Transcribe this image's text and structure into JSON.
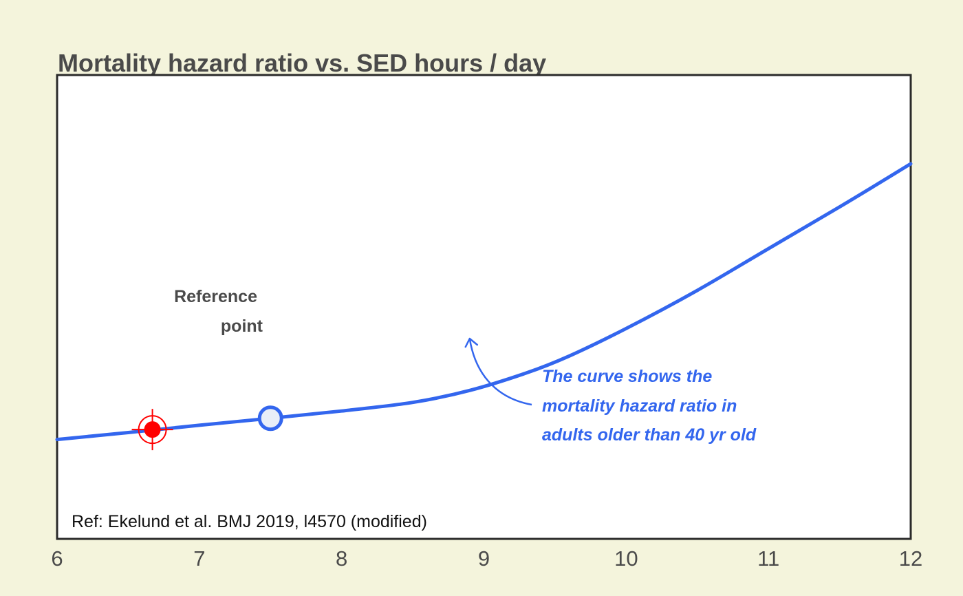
{
  "chart_data": {
    "type": "line",
    "title": "Mortality hazard ratio vs. SED hours / day",
    "xlabel": "",
    "ylabel": "",
    "xlim": [
      6,
      12
    ],
    "ylim": [
      0.8,
      2.2
    ],
    "x_ticks": [
      "6",
      "7",
      "8",
      "9",
      "10",
      "11",
      "12"
    ],
    "grid": false,
    "series": [
      {
        "color": "#3366ee",
        "points": [
          [
            6.0,
            1.1
          ],
          [
            6.5,
            1.121
          ],
          [
            7.0,
            1.143
          ],
          [
            7.5,
            1.164
          ],
          [
            8.0,
            1.186
          ],
          [
            8.5,
            1.212
          ],
          [
            8.9,
            1.248
          ],
          [
            9.3,
            1.301
          ],
          [
            9.6,
            1.352
          ],
          [
            10.0,
            1.435
          ],
          [
            10.5,
            1.55
          ],
          [
            11.0,
            1.676
          ],
          [
            11.5,
            1.802
          ],
          [
            12.0,
            1.932
          ]
        ]
      }
    ],
    "markers": {
      "reference_point": {
        "x": 7.5,
        "y": 1.164,
        "label_line1": "Reference",
        "label_line2": "point",
        "color": "#3366ee",
        "fill": "#e8eef8"
      },
      "target_point": {
        "x": 6.67,
        "y": 1.13,
        "color": "#ff0000"
      }
    },
    "annotation": {
      "lines": [
        "The curve shows the",
        "mortality hazard ratio in",
        "adults older than 40 yr old"
      ],
      "arrow_to_x": 8.9,
      "color": "#3366ee"
    },
    "source_note": "Ref: Ekelund et al. BMJ 2019, l4570 (modified)"
  }
}
